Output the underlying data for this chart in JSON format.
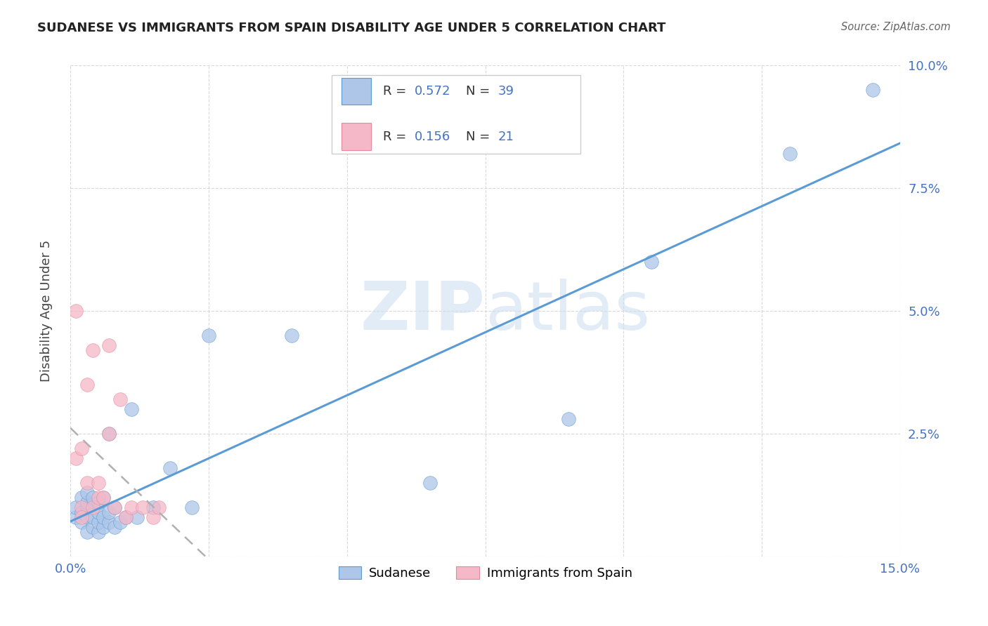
{
  "title": "SUDANESE VS IMMIGRANTS FROM SPAIN DISABILITY AGE UNDER 5 CORRELATION CHART",
  "source": "Source: ZipAtlas.com",
  "ylabel": "Disability Age Under 5",
  "xlim": [
    0.0,
    0.15
  ],
  "ylim": [
    0.0,
    0.1
  ],
  "blue_color": "#aec6e8",
  "pink_color": "#f5b8c8",
  "line_blue": "#5b9bd5",
  "line_pink": "#c0c0c0",
  "text_blue": "#4472c4",
  "watermark_color": "#cde0f0",
  "legend_r1": "R = ",
  "legend_v1": "0.572",
  "legend_n1_label": "N = ",
  "legend_n1": "39",
  "legend_r2": "R = ",
  "legend_v2": "0.156",
  "legend_n2_label": "N = ",
  "legend_n2": "21",
  "sudanese_x": [
    0.001,
    0.001,
    0.002,
    0.002,
    0.002,
    0.003,
    0.003,
    0.003,
    0.003,
    0.003,
    0.004,
    0.004,
    0.004,
    0.005,
    0.005,
    0.005,
    0.005,
    0.006,
    0.006,
    0.006,
    0.007,
    0.007,
    0.007,
    0.008,
    0.008,
    0.009,
    0.01,
    0.011,
    0.012,
    0.015,
    0.018,
    0.022,
    0.025,
    0.04,
    0.065,
    0.09,
    0.105,
    0.13,
    0.145
  ],
  "sudanese_y": [
    0.008,
    0.01,
    0.007,
    0.009,
    0.012,
    0.005,
    0.008,
    0.01,
    0.011,
    0.013,
    0.006,
    0.008,
    0.012,
    0.005,
    0.007,
    0.009,
    0.011,
    0.006,
    0.008,
    0.012,
    0.007,
    0.009,
    0.025,
    0.006,
    0.01,
    0.007,
    0.008,
    0.03,
    0.008,
    0.01,
    0.018,
    0.01,
    0.045,
    0.045,
    0.015,
    0.028,
    0.06,
    0.082,
    0.095
  ],
  "spain_x": [
    0.001,
    0.001,
    0.002,
    0.002,
    0.002,
    0.003,
    0.003,
    0.004,
    0.004,
    0.005,
    0.005,
    0.006,
    0.007,
    0.007,
    0.008,
    0.009,
    0.01,
    0.011,
    0.013,
    0.015,
    0.016
  ],
  "spain_y": [
    0.02,
    0.05,
    0.01,
    0.022,
    0.008,
    0.015,
    0.035,
    0.01,
    0.042,
    0.012,
    0.015,
    0.012,
    0.025,
    0.043,
    0.01,
    0.032,
    0.008,
    0.01,
    0.01,
    0.008,
    0.01
  ]
}
